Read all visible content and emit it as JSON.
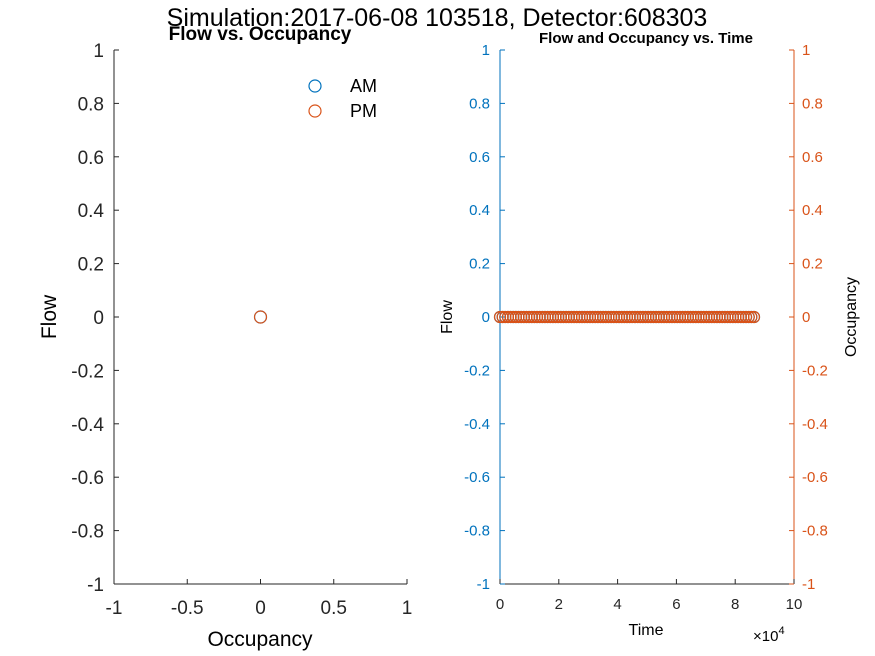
{
  "figure": {
    "suptitle": "Simulation:2017-06-08 103518, Detector:608303"
  },
  "colors": {
    "am": "#0072BD",
    "pm": "#D95319",
    "axis": "#262626",
    "left_axis": "#0072BD",
    "right_axis": "#D95319"
  },
  "chart_data": [
    {
      "type": "scatter",
      "title": "Flow vs. Occupancy",
      "xlabel": "Occupancy",
      "ylabel": "Flow",
      "xlim": [
        -1,
        1
      ],
      "ylim": [
        -1,
        1
      ],
      "xticks": [
        -1,
        -0.5,
        0,
        0.5,
        1
      ],
      "xtick_labels": [
        "-1",
        "-0.5",
        "0",
        "0.5",
        "1"
      ],
      "yticks": [
        -1,
        -0.8,
        -0.6,
        -0.4,
        -0.2,
        0,
        0.2,
        0.4,
        0.6,
        0.8,
        1
      ],
      "ytick_labels": [
        "-1",
        "-0.8",
        "-0.6",
        "-0.4",
        "-0.2",
        "0",
        "0.2",
        "0.4",
        "0.6",
        "0.8",
        "1"
      ],
      "grid": false,
      "legend_position": "top-right",
      "marker": "open-circle",
      "series": [
        {
          "name": "AM",
          "points": [
            [
              0,
              0
            ]
          ]
        },
        {
          "name": "PM",
          "points": [
            [
              0,
              0
            ]
          ]
        }
      ]
    },
    {
      "type": "scatter",
      "title": "Flow and Occupancy vs. Time",
      "xlabel": "Time",
      "x_exponent_label": "×10",
      "x_exponent_power": "4",
      "x_exponent": 4,
      "ylabel_left": "Flow",
      "ylabel_right": "Occupancy",
      "xlim": [
        0,
        100000
      ],
      "ylim_left": [
        -1,
        1
      ],
      "ylim_right": [
        -1,
        1
      ],
      "xticks": [
        0,
        20000,
        40000,
        60000,
        80000,
        100000
      ],
      "xtick_labels": [
        "0",
        "2",
        "4",
        "6",
        "8",
        "10"
      ],
      "yticks": [
        -1,
        -0.8,
        -0.6,
        -0.4,
        -0.2,
        0,
        0.2,
        0.4,
        0.6,
        0.8,
        1
      ],
      "ytick_labels": [
        "-1",
        "-0.8",
        "-0.6",
        "-0.4",
        "-0.2",
        "0",
        "0.2",
        "0.4",
        "0.6",
        "0.8",
        "1"
      ],
      "grid": false,
      "marker": "open-circle",
      "series": [
        {
          "axis": "left",
          "x_range": [
            0,
            86400
          ],
          "y": 0
        },
        {
          "axis": "right",
          "x_range": [
            0,
            86400
          ],
          "y": 0
        }
      ]
    }
  ]
}
